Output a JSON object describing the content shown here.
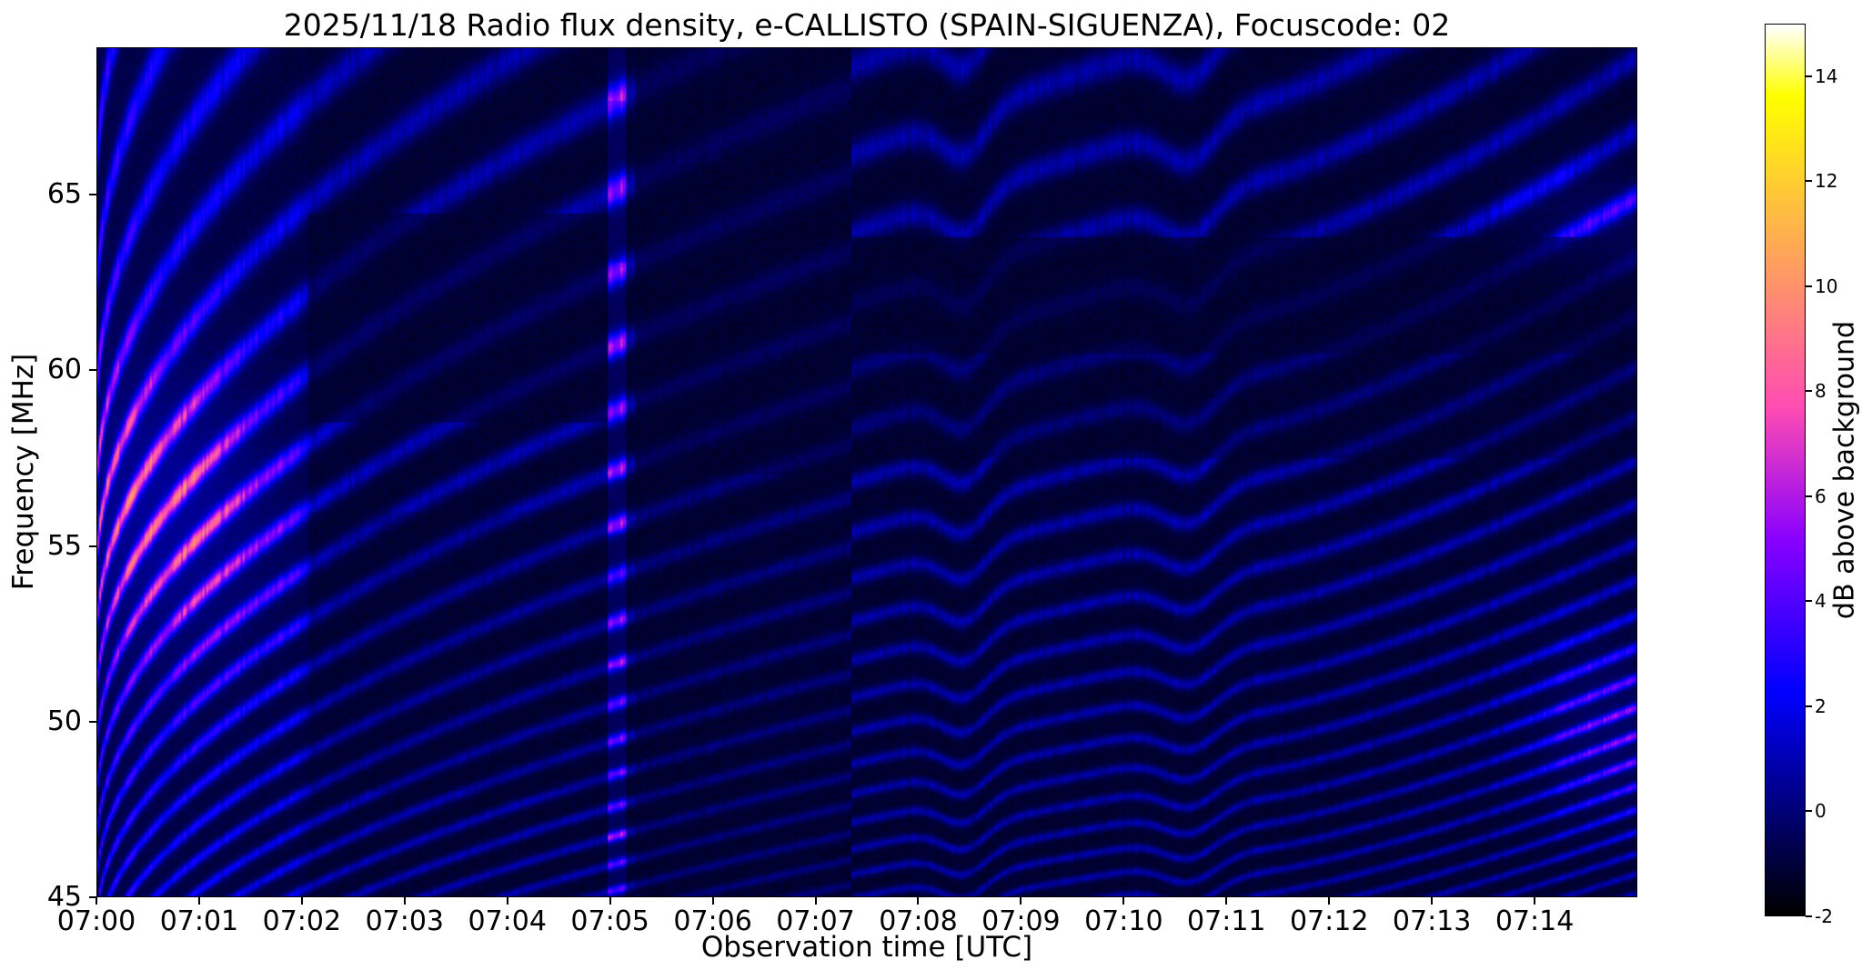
{
  "figure": {
    "title": "2025/11/18  Radio flux density, e-CALLISTO (SPAIN-SIGUENZA), Focuscode: 02",
    "xlabel": "Observation time [UTC]",
    "ylabel": "Frequency [MHz]",
    "colorbar_label": "dB above background"
  },
  "chart_data": {
    "type": "heatmap",
    "title": "2025/11/18  Radio flux density, e-CALLISTO (SPAIN-SIGUENZA), Focuscode: 02",
    "date": "2025/11/18",
    "instrument": "e-CALLISTO (SPAIN-SIGUENZA)",
    "focuscode": "02",
    "xlabel": "Observation time [UTC]",
    "ylabel": "Frequency [MHz]",
    "x_ticks": [
      "07:00",
      "07:01",
      "07:02",
      "07:03",
      "07:04",
      "07:05",
      "07:06",
      "07:07",
      "07:08",
      "07:09",
      "07:10",
      "07:11",
      "07:12",
      "07:13",
      "07:14"
    ],
    "x_range_minutes_after_0700": [
      0,
      15
    ],
    "y_ticks_mhz": [
      45,
      50,
      55,
      60,
      65
    ],
    "y_range_mhz": [
      45,
      69.2
    ],
    "value_label": "dB above background",
    "value_range_db": [
      -2,
      15
    ],
    "colorbar_ticks_db": [
      -2,
      0,
      2,
      4,
      6,
      8,
      10,
      12,
      14
    ],
    "colormap": "gnuplot2",
    "features": [
      {
        "name": "drifting-fringe-bands",
        "description": "Quasi-parallel emission bands about 1-1.9 MHz apart drifting slowly downward in frequency across the whole 15 minute record, steepest before 07:02, with upward humps near 07:08.4 and 07:10.7"
      },
      {
        "name": "bright-patch-start",
        "time": "07:00-07:02",
        "freq_mhz": [
          50,
          62
        ],
        "peak_db": 8,
        "description": "Brightest pink/magenta fringes at record start"
      },
      {
        "name": "vertical-interference-stripe",
        "time": "07:05",
        "freq_mhz": [
          45,
          69
        ],
        "peak_db": 7,
        "description": "Narrow bright full-band vertical stripe"
      },
      {
        "name": "dark-band-upper",
        "time": "07:02-07:05",
        "freq_mhz": [
          58.5,
          64.5
        ],
        "description": "Dark rectangular block"
      },
      {
        "name": "dark-column",
        "time": "07:05.3-07:07.3",
        "freq_mhz": [
          45,
          69
        ],
        "description": "Darker vertical segment"
      },
      {
        "name": "dark-horizontal-band",
        "time": "07:07-07:15",
        "freq_mhz": [
          60.5,
          63.8
        ],
        "description": "Dark horizontal lane in upper part"
      },
      {
        "name": "bright-patch-end-low",
        "time": "07:14-07:15",
        "freq_mhz": [
          47,
          52
        ],
        "peak_db": 6,
        "description": "Magenta patch at right edge, low frequencies"
      },
      {
        "name": "bright-patch-end-high",
        "time": "07:14-07:15",
        "freq_mhz": [
          63,
          66
        ],
        "peak_db": 5,
        "description": "Magenta band at right edge near 64.5 MHz"
      }
    ],
    "render": {
      "base_db": -1.2,
      "fringe_amp": 1.9,
      "env_lift": 0.25,
      "noise": 0.5,
      "col_texture": 0.45,
      "line_width": 0.17,
      "fringe_spacing_base": 0.95,
      "fringe_spacing_slope": 0.04,
      "drift_sqrt": 4.6,
      "late_t": 11.5,
      "late_k": 0.38,
      "jump_t": 7.35,
      "jump_amount": 0.4,
      "bumps": [
        {
          "t": 8.45,
          "w": 0.3,
          "a": 0.9
        },
        {
          "t": 10.65,
          "w": 0.35,
          "a": 0.9
        }
      ],
      "left_glow": {
        "amp": 2.0,
        "tau": 2.2,
        "cut_t": 2.05,
        "cut_factor": 0.25
      },
      "blob_start": {
        "amp": 5.4,
        "t": 0.7,
        "tw": 1.15,
        "f": 56,
        "fw": 4.3
      },
      "blob_end_low": {
        "amp": 3.6,
        "t": 14.75,
        "tw": 0.75,
        "f": 49.8,
        "fw": 2.6
      },
      "blob_end_high": {
        "amp": 2.6,
        "t": 14.65,
        "tw": 0.9,
        "f": 64.4,
        "fw": 1.4
      },
      "stripe": {
        "t0": 4.98,
        "t1": 5.16,
        "amp": 2.2,
        "rand_amp": 2.6,
        "base": 0.7
      },
      "blocks": [
        {
          "t0": 2.05,
          "t1": 5.0,
          "f0": 58.5,
          "f1": 64.5,
          "factor": 0.4
        },
        {
          "t0": 2.05,
          "t1": 5.0,
          "f0": 48.0,
          "f1": 56.0,
          "factor": 0.8
        },
        {
          "t0": 5.25,
          "t1": 7.35,
          "f0": 45.0,
          "f1": 69.2,
          "factor": 0.6
        },
        {
          "t0": 5.25,
          "t1": 7.35,
          "f0": 57.0,
          "f1": 69.2,
          "factor": 0.6
        },
        {
          "t0": 7.35,
          "t1": 15.0,
          "f0": 60.5,
          "f1": 63.8,
          "factor": 0.3
        },
        {
          "t0": 7.35,
          "t1": 15.0,
          "f0": 57.5,
          "f1": 60.5,
          "factor": 0.6
        }
      ]
    }
  }
}
